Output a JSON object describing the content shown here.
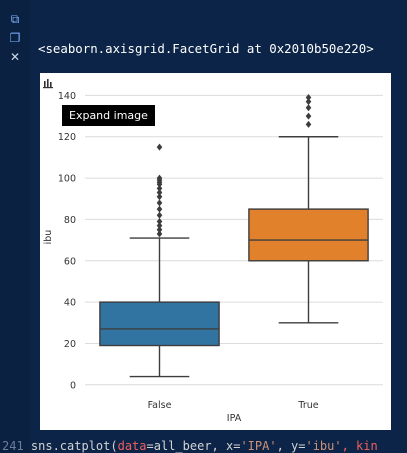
{
  "toolbar": {
    "icons": [
      "cell-toggle-icon",
      "copy-icon",
      "close-icon"
    ],
    "cell_glyph": "⧉",
    "copy_glyph": "❐",
    "close_glyph": "✕"
  },
  "output": {
    "repr_text": "<seaborn.axisgrid.FacetGrid at 0x2010b50e220>",
    "tooltip": "Expand image"
  },
  "code": {
    "line_number": "241",
    "text_before": " sns.catplot(",
    "data_kw": "data",
    "data_val": "=all_beer,",
    "x_kw": " x=",
    "x_val": "'IPA'",
    "sep": ", ",
    "y_kw": "y=",
    "y_val": "'ibu'",
    "kind_kw": ", kin"
  },
  "colors": {
    "false_box": "#3274a1",
    "true_box": "#e1812c",
    "line": "#3d3d3d",
    "grid": "#dcdcdc"
  },
  "chart_data": {
    "type": "box",
    "categories": [
      "False",
      "True"
    ],
    "xlabel": "IPA",
    "ylabel": "ibu",
    "ylim": [
      -3,
      146
    ],
    "yticks": [
      0,
      20,
      40,
      60,
      80,
      100,
      120,
      140
    ],
    "grid": true,
    "boxes": [
      {
        "category": "False",
        "whisker_low": 4,
        "q1": 19,
        "median": 27,
        "q3": 40,
        "whisker_high": 71,
        "outliers": [
          73,
          75,
          77,
          79,
          82,
          85,
          88,
          91,
          93,
          95,
          97,
          98,
          99,
          100,
          115
        ]
      },
      {
        "category": "True",
        "whisker_low": 30,
        "q1": 60,
        "median": 70,
        "q3": 85,
        "whisker_high": 120,
        "outliers": [
          126,
          130,
          134,
          137,
          139
        ]
      }
    ]
  }
}
